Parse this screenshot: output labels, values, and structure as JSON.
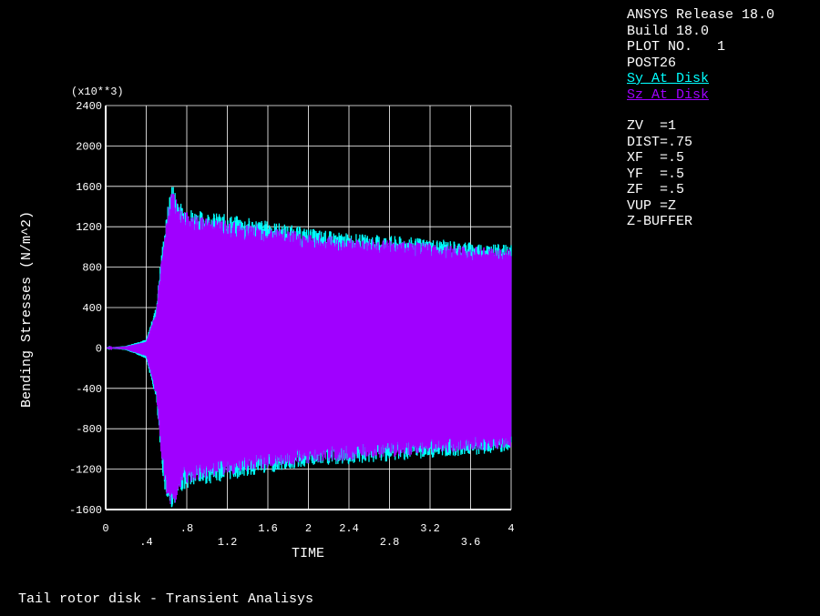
{
  "header": {
    "release": "ANSYS Release 18.0",
    "build": "Build 18.0",
    "plot_no": "PLOT NO.   1",
    "module": "POST26"
  },
  "view": [
    "ZV  =1",
    "DIST=.75",
    "XF  =.5",
    "YF  =.5",
    "ZF  =.5",
    "VUP =Z",
    "Z-BUFFER"
  ],
  "caption": "Tail rotor disk - Transient Analisys",
  "colors": {
    "background": "#000000",
    "sy": "#00ffff",
    "sz": "#a000ff",
    "axes": "#ffffff"
  },
  "chart_data": {
    "type": "line",
    "xlabel": "TIME",
    "ylabel": "Bending Stresses (N/m^2)",
    "y_multiplier": "(x10**3)",
    "xlim": [
      0,
      4
    ],
    "ylim": [
      -1600,
      2400
    ],
    "x_ticks_upper": [
      "0",
      ".8",
      "1.6",
      "2",
      "2.4",
      "3.2",
      "4"
    ],
    "x_ticks_lower": [
      ".4",
      "1.2",
      "2.8",
      "3.6"
    ],
    "x_tick_positions_upper": [
      0,
      0.8,
      1.6,
      2,
      2.4,
      3.2,
      4
    ],
    "x_tick_positions_lower": [
      0.4,
      1.2,
      2.8,
      3.6
    ],
    "y_ticks": [
      -1600,
      -1200,
      -800,
      -400,
      0,
      400,
      800,
      1200,
      1600,
      2000,
      2400
    ],
    "grid": true,
    "series": [
      {
        "name": "Sy_At_Disk",
        "color": "#00ffff",
        "upper_envelope": [
          [
            0,
            0
          ],
          [
            0.2,
            20
          ],
          [
            0.4,
            80
          ],
          [
            0.5,
            400
          ],
          [
            0.55,
            900
          ],
          [
            0.6,
            1250
          ],
          [
            0.65,
            1580
          ],
          [
            0.75,
            1350
          ],
          [
            0.9,
            1300
          ],
          [
            1.2,
            1260
          ],
          [
            1.6,
            1200
          ],
          [
            2.0,
            1130
          ],
          [
            2.4,
            1080
          ],
          [
            2.8,
            1060
          ],
          [
            3.2,
            1030
          ],
          [
            3.6,
            1000
          ],
          [
            4.0,
            970
          ]
        ],
        "lower_envelope": [
          [
            0,
            0
          ],
          [
            0.2,
            -20
          ],
          [
            0.4,
            -100
          ],
          [
            0.5,
            -500
          ],
          [
            0.55,
            -1100
          ],
          [
            0.6,
            -1450
          ],
          [
            0.65,
            -1520
          ],
          [
            0.75,
            -1350
          ],
          [
            0.9,
            -1300
          ],
          [
            1.2,
            -1250
          ],
          [
            1.6,
            -1180
          ],
          [
            2.0,
            -1120
          ],
          [
            2.4,
            -1100
          ],
          [
            2.8,
            -1070
          ],
          [
            3.2,
            -1040
          ],
          [
            3.6,
            -1010
          ],
          [
            4.0,
            -990
          ]
        ]
      },
      {
        "name": "Sz_At_Disk",
        "color": "#a000ff",
        "upper_envelope": [
          [
            0,
            0
          ],
          [
            0.2,
            15
          ],
          [
            0.4,
            60
          ],
          [
            0.5,
            350
          ],
          [
            0.55,
            850
          ],
          [
            0.6,
            1200
          ],
          [
            0.65,
            1500
          ],
          [
            0.75,
            1300
          ],
          [
            0.9,
            1250
          ],
          [
            1.2,
            1200
          ],
          [
            1.6,
            1150
          ],
          [
            2.0,
            1080
          ],
          [
            2.4,
            1040
          ],
          [
            2.8,
            1020
          ],
          [
            3.2,
            990
          ],
          [
            3.6,
            960
          ],
          [
            4.0,
            930
          ]
        ],
        "lower_envelope": [
          [
            0,
            0
          ],
          [
            0.2,
            -15
          ],
          [
            0.4,
            -80
          ],
          [
            0.5,
            -450
          ],
          [
            0.55,
            -1050
          ],
          [
            0.6,
            -1400
          ],
          [
            0.65,
            -1560
          ],
          [
            0.75,
            -1300
          ],
          [
            0.9,
            -1250
          ],
          [
            1.2,
            -1200
          ],
          [
            1.6,
            -1140
          ],
          [
            2.0,
            -1090
          ],
          [
            2.4,
            -1060
          ],
          [
            2.8,
            -1030
          ],
          [
            3.2,
            -1000
          ],
          [
            3.6,
            -970
          ],
          [
            4.0,
            -950
          ]
        ]
      }
    ]
  }
}
